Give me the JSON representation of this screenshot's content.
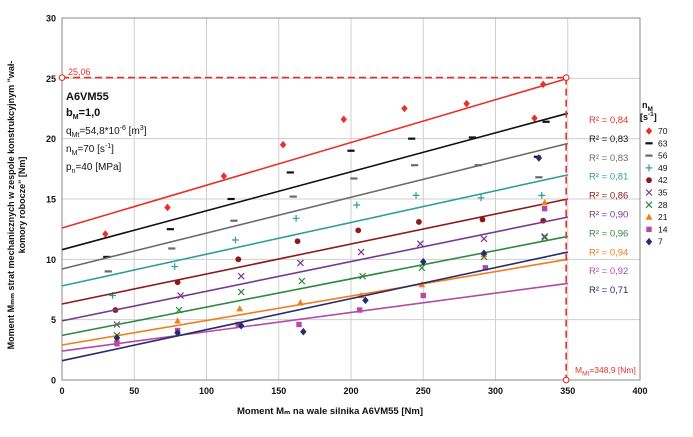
{
  "chart_data": {
    "type": "scatter",
    "title": "",
    "xlabel": "Moment Mₘ na wale silnika A6VM55 [Nm]",
    "ylabel_line1": "Moment Mₘₘ strat mechanicznych w zespole konstrukcyjnym \"wał-",
    "ylabel_line2": "komory robocze\" [Nm]",
    "xlim": [
      0,
      400
    ],
    "ylim": [
      0,
      30
    ],
    "x_ticks": [
      0,
      50,
      100,
      150,
      200,
      250,
      300,
      350,
      400
    ],
    "y_ticks": [
      0,
      5,
      10,
      15,
      20,
      25,
      30
    ],
    "grid": true,
    "info_box": {
      "motor": "A6VM55",
      "bm_label": "b",
      "bm_sub": "M",
      "bm_value": "=1,0",
      "q_label": "q",
      "q_sub": "Mt",
      "q_value": "=54,8*10",
      "q_exp": "-6",
      "q_unit": " [m",
      "q_unit_exp": "3",
      "q_close": "]",
      "n_label": "n",
      "n_sub": "M",
      "n_value": "=70 [s",
      "n_exp": "-1",
      "n_close": "]",
      "p_label": "p",
      "p_sub": "n",
      "p_value": "=40 [MPa]"
    },
    "legend_title": "n",
    "legend_title_sub": "M",
    "legend_unit": "[s",
    "legend_unit_exp": "-1",
    "legend_unit_close": "]",
    "reference_lines": {
      "y_value": 25.06,
      "y_label": "25,06",
      "x_value": 348.9,
      "x_label_prefix": "M",
      "x_label_sub": "Mt",
      "x_label_value": "=348,9 [Nm]"
    },
    "series": [
      {
        "name": "70",
        "marker": "diamond",
        "color": "#e8312a",
        "r2": "R² = 0,84",
        "line": [
          [
            0,
            12.6
          ],
          [
            350,
            25.0
          ]
        ],
        "points": [
          [
            30,
            12.1
          ],
          [
            73,
            14.3
          ],
          [
            112,
            16.9
          ],
          [
            153,
            19.5
          ],
          [
            195,
            21.6
          ],
          [
            237,
            22.5
          ],
          [
            280,
            22.9
          ],
          [
            327,
            21.7
          ],
          [
            333,
            24.5
          ]
        ]
      },
      {
        "name": "63",
        "marker": "dash",
        "color": "#111111",
        "r2": "R² = 0,83",
        "line": [
          [
            0,
            10.8
          ],
          [
            350,
            22.1
          ]
        ],
        "points": [
          [
            31,
            10.2
          ],
          [
            75,
            12.5
          ],
          [
            117,
            15.0
          ],
          [
            158,
            17.2
          ],
          [
            200,
            19.0
          ],
          [
            242,
            20.0
          ],
          [
            284,
            20.1
          ],
          [
            329,
            18.5
          ],
          [
            335,
            21.4
          ]
        ]
      },
      {
        "name": "56",
        "marker": "dash",
        "color": "#6a6a6a",
        "r2": "R² = 0,83",
        "line": [
          [
            0,
            9.2
          ],
          [
            350,
            19.6
          ]
        ],
        "points": [
          [
            32,
            9.0
          ],
          [
            76,
            10.9
          ],
          [
            119,
            13.2
          ],
          [
            160,
            15.2
          ],
          [
            202,
            16.7
          ],
          [
            244,
            17.8
          ],
          [
            288,
            17.8
          ],
          [
            330,
            16.8
          ]
        ]
      },
      {
        "name": "49",
        "marker": "plus",
        "color": "#2e9e9a",
        "r2": "R² = 0,81",
        "line": [
          [
            0,
            7.8
          ],
          [
            350,
            17.0
          ]
        ],
        "points": [
          [
            35,
            7.0
          ],
          [
            78,
            9.4
          ],
          [
            120,
            11.6
          ],
          [
            162,
            13.4
          ],
          [
            204,
            14.5
          ],
          [
            245,
            15.3
          ],
          [
            290,
            15.1
          ],
          [
            332,
            15.3
          ]
        ]
      },
      {
        "name": "42",
        "marker": "circle",
        "color": "#8b1a1a",
        "r2": "R² = 0,86",
        "line": [
          [
            0,
            6.3
          ],
          [
            350,
            15.0
          ]
        ],
        "points": [
          [
            37,
            5.8
          ],
          [
            80,
            8.1
          ],
          [
            122,
            10.0
          ],
          [
            163,
            11.5
          ],
          [
            205,
            12.4
          ],
          [
            247,
            13.1
          ],
          [
            291,
            13.3
          ],
          [
            333,
            13.2
          ]
        ]
      },
      {
        "name": "35",
        "marker": "x",
        "color": "#7a3590",
        "r2": "R² = 0,90",
        "line": [
          [
            0,
            4.9
          ],
          [
            350,
            13.5
          ]
        ],
        "points": [
          [
            38,
            4.6
          ],
          [
            82,
            7.0
          ],
          [
            124,
            8.6
          ],
          [
            165,
            9.7
          ],
          [
            207,
            10.6
          ],
          [
            248,
            11.3
          ],
          [
            292,
            11.7
          ],
          [
            334,
            11.9
          ]
        ]
      },
      {
        "name": "28",
        "marker": "x",
        "color": "#2e8a3e",
        "r2": "R² = 0,96",
        "line": [
          [
            0,
            3.7
          ],
          [
            350,
            11.9
          ]
        ],
        "points": [
          [
            38,
            3.7
          ],
          [
            81,
            5.8
          ],
          [
            124,
            7.3
          ],
          [
            166,
            8.2
          ],
          [
            208,
            8.6
          ],
          [
            249,
            9.3
          ],
          [
            292,
            10.2
          ],
          [
            334,
            11.8
          ]
        ]
      },
      {
        "name": "21",
        "marker": "triangle",
        "color": "#f07d1a",
        "r2": "R² = 0,94",
        "line": [
          [
            0,
            2.9
          ],
          [
            350,
            10.0
          ]
        ],
        "points": [
          [
            38,
            3.4
          ],
          [
            80,
            4.9
          ],
          [
            123,
            5.9
          ],
          [
            165,
            6.4
          ],
          [
            207,
            7.0
          ],
          [
            249,
            7.9
          ],
          [
            292,
            10.4
          ],
          [
            334,
            14.7
          ]
        ]
      },
      {
        "name": "14",
        "marker": "square",
        "color": "#b44aa8",
        "r2": "R² = 0,92",
        "line": [
          [
            0,
            2.4
          ],
          [
            350,
            8.0
          ]
        ],
        "points": [
          [
            38,
            3.0
          ],
          [
            80,
            4.1
          ],
          [
            122,
            4.6
          ],
          [
            164,
            4.6
          ],
          [
            206,
            5.8
          ],
          [
            250,
            7.0
          ],
          [
            293,
            9.3
          ],
          [
            334,
            14.2
          ]
        ]
      },
      {
        "name": "7",
        "marker": "diamond",
        "color": "#2a2a6e",
        "r2": "R² = 0,71",
        "line": [
          [
            0,
            1.6
          ],
          [
            350,
            10.6
          ]
        ],
        "points": [
          [
            38,
            3.5
          ],
          [
            80,
            3.9
          ],
          [
            124,
            4.5
          ],
          [
            167,
            4.0
          ],
          [
            210,
            6.6
          ],
          [
            250,
            9.8
          ],
          [
            292,
            10.5
          ],
          [
            330,
            18.4
          ]
        ]
      }
    ]
  }
}
